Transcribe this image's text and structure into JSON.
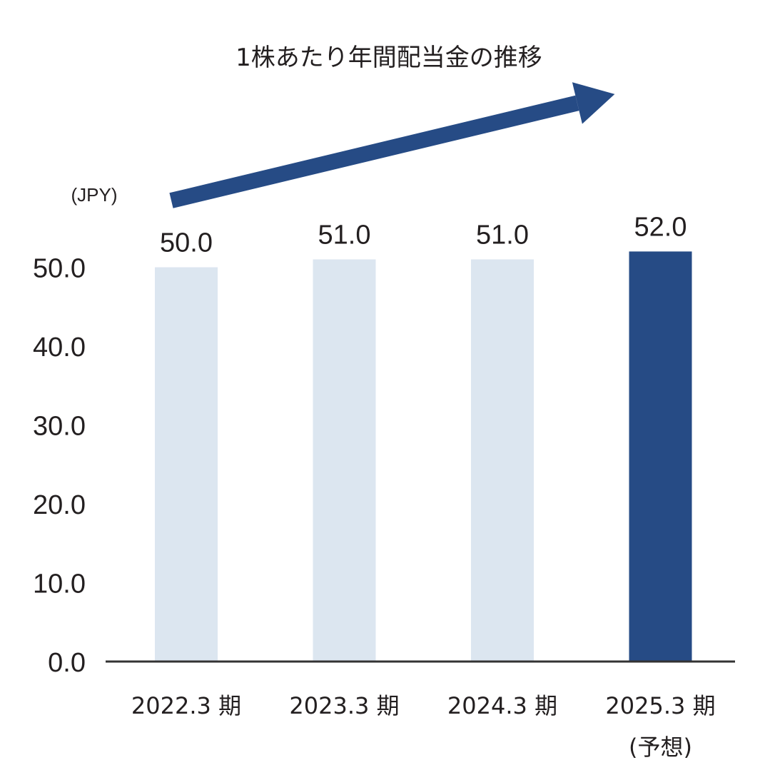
{
  "chart_data": {
    "type": "bar",
    "title": "1株あたり年間配当金の推移",
    "unit_label": "(JPY)",
    "categories": [
      "2022.3 期",
      "2023.3 期",
      "2024.3 期",
      "2025.3 期"
    ],
    "category_sublabels": [
      "",
      "",
      "",
      "(予想)"
    ],
    "values": [
      50.0,
      51.0,
      51.0,
      52.0
    ],
    "value_labels": [
      "50.0",
      "51.0",
      "51.0",
      "52.0"
    ],
    "y_ticks": [
      "0.0",
      "10.0",
      "20.0",
      "30.0",
      "40.0",
      "50.0"
    ],
    "ylim": [
      0,
      50
    ],
    "grid": false,
    "legend": "none",
    "trend_arrow": true,
    "colors": {
      "actual": "#dce6f0",
      "forecast": "#264b85",
      "arrow": "#264b85",
      "axis": "#333333",
      "text": "#231f20"
    },
    "highlight_index": 3
  }
}
